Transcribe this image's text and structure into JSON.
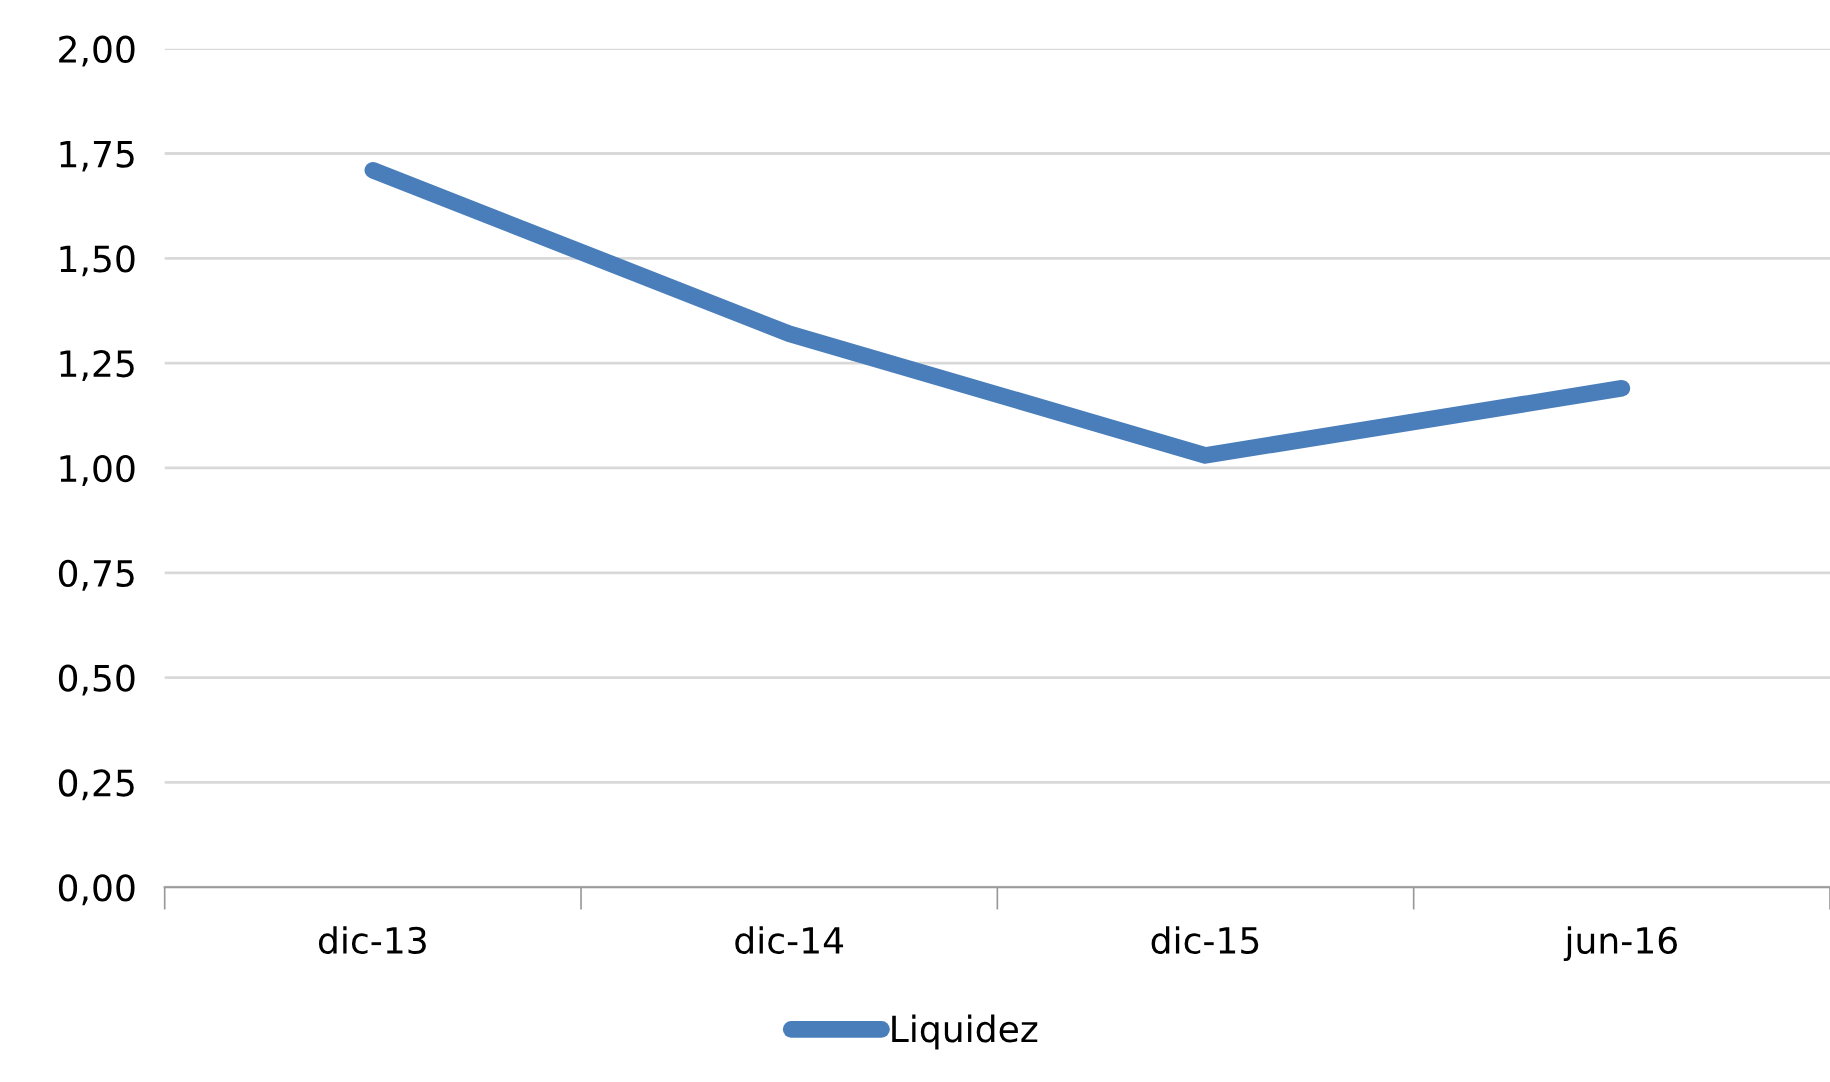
{
  "chart_data": {
    "type": "line",
    "categories": [
      "dic-13",
      "dic-14",
      "dic-15",
      "jun-16"
    ],
    "series": [
      {
        "name": "Liquidez",
        "color": "#4a7ebb",
        "values": [
          1.71,
          1.32,
          1.03,
          1.19
        ]
      }
    ],
    "ylim": [
      0,
      2
    ],
    "yticks": [
      {
        "value": 0,
        "label": "0,00"
      },
      {
        "value": 0.25,
        "label": "0,25"
      },
      {
        "value": 0.5,
        "label": "0,50"
      },
      {
        "value": 0.75,
        "label": "0,75"
      },
      {
        "value": 1,
        "label": "1,00"
      },
      {
        "value": 1.25,
        "label": "1,25"
      },
      {
        "value": 1.5,
        "label": "1,50"
      },
      {
        "value": 1.75,
        "label": "1,75"
      },
      {
        "value": 2,
        "label": "2,00"
      }
    ],
    "grid": "y",
    "legend": "bottom",
    "marker": "none",
    "line_style": "solid"
  }
}
